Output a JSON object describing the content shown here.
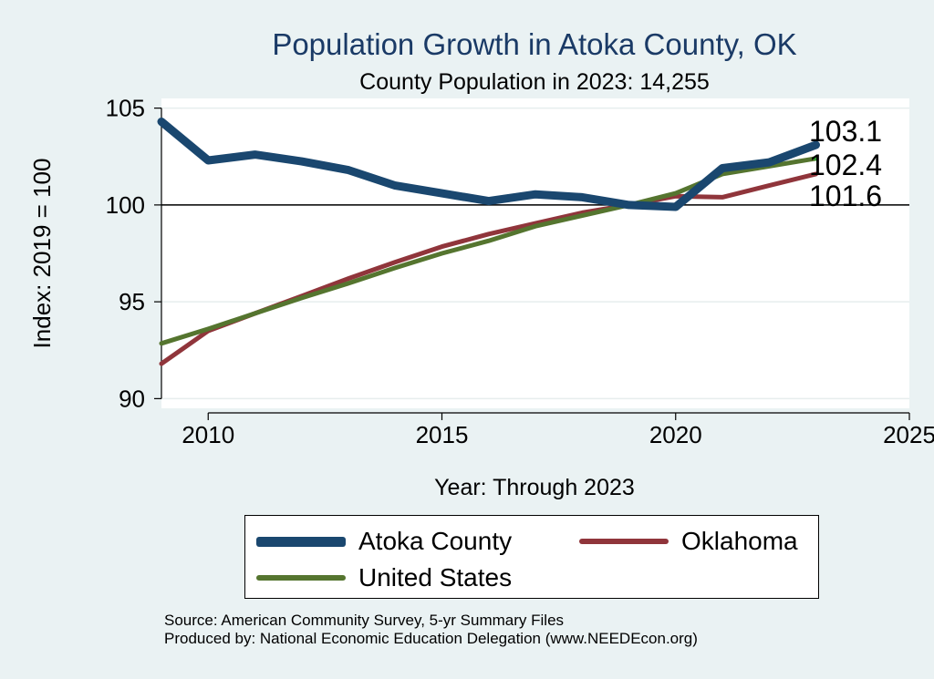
{
  "chart_data": {
    "type": "line",
    "title": "Population Growth in Atoka County, OK",
    "subtitle": "County Population in 2023: 14,255",
    "xlabel": "Year: Through 2023",
    "ylabel": "Index: 2019 = 100",
    "xlim": [
      2009,
      2025
    ],
    "ylim": [
      89.5,
      105.5
    ],
    "xticks": [
      2010,
      2015,
      2020,
      2025
    ],
    "yticks": [
      90,
      95,
      100,
      105
    ],
    "reference_line": 100,
    "grid": true,
    "x": [
      2009,
      2010,
      2011,
      2012,
      2013,
      2014,
      2015,
      2016,
      2017,
      2018,
      2019,
      2020,
      2021,
      2022,
      2023
    ],
    "series": [
      {
        "name": "Atoka  County",
        "color": "#1a476f",
        "values": [
          104.3,
          102.3,
          102.6,
          102.25,
          101.8,
          101.0,
          100.6,
          100.2,
          100.55,
          100.4,
          100.0,
          99.9,
          101.9,
          102.2,
          103.1
        ]
      },
      {
        "name": "Oklahoma",
        "color": "#90353b",
        "values": [
          91.8,
          93.5,
          94.4,
          95.3,
          96.2,
          97.05,
          97.85,
          98.5,
          99.05,
          99.6,
          100.0,
          100.45,
          100.4,
          101.0,
          101.6
        ]
      },
      {
        "name": "United States",
        "color": "#55752f",
        "values": [
          92.85,
          93.6,
          94.4,
          95.2,
          95.95,
          96.75,
          97.5,
          98.15,
          98.9,
          99.45,
          100.0,
          100.6,
          101.6,
          102.0,
          102.4
        ]
      }
    ],
    "end_labels": [
      "103.1",
      "102.4",
      "101.6"
    ],
    "legend_position": "bottom"
  },
  "source_line": "Source: American Community Survey, 5-yr Summary Files",
  "producer_line": "Produced by: National Economic Education Delegation (www.NEEDEcon.org)"
}
